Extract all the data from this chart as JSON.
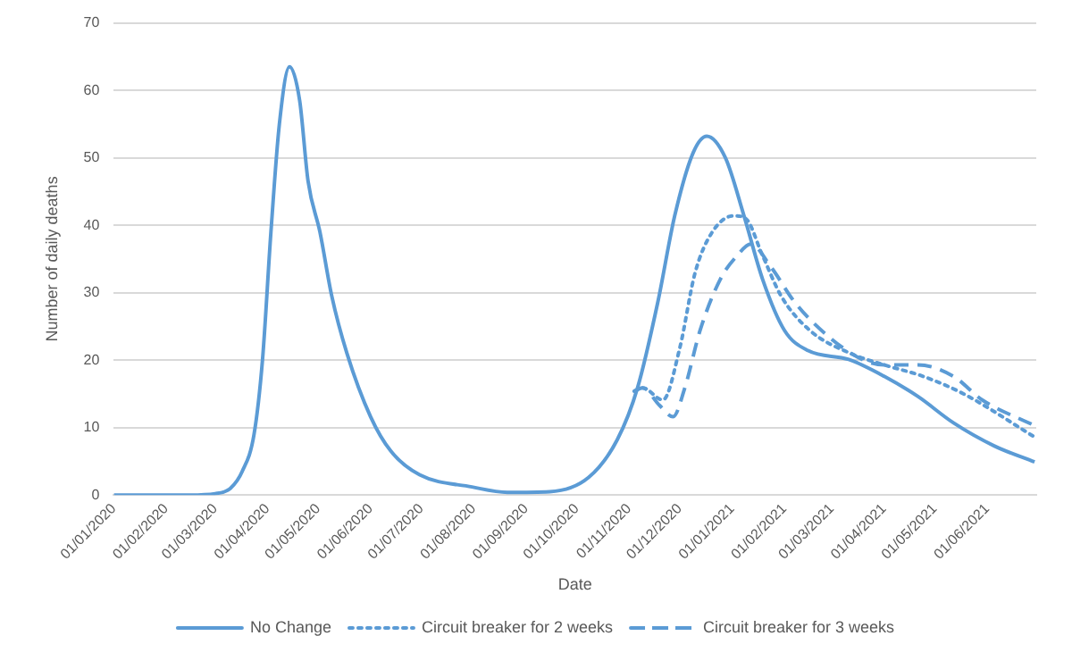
{
  "chart_data": {
    "type": "line",
    "xlabel": "Date",
    "ylabel": "Number of daily deaths",
    "xlim": [
      "2020-01-01",
      "2021-06-30"
    ],
    "xticks": [
      {
        "value": "2020-01-01",
        "label": "01/01/2020"
      },
      {
        "value": "2020-02-01",
        "label": "01/02/2020"
      },
      {
        "value": "2020-03-01",
        "label": "01/03/2020"
      },
      {
        "value": "2020-04-01",
        "label": "01/04/2020"
      },
      {
        "value": "2020-05-01",
        "label": "01/05/2020"
      },
      {
        "value": "2020-06-01",
        "label": "01/06/2020"
      },
      {
        "value": "2020-07-01",
        "label": "01/07/2020"
      },
      {
        "value": "2020-08-01",
        "label": "01/08/2020"
      },
      {
        "value": "2020-09-01",
        "label": "01/09/2020"
      },
      {
        "value": "2020-10-01",
        "label": "01/10/2020"
      },
      {
        "value": "2020-11-01",
        "label": "01/11/2020"
      },
      {
        "value": "2020-12-01",
        "label": "01/12/2020"
      },
      {
        "value": "2021-01-01",
        "label": "01/01/2021"
      },
      {
        "value": "2021-02-01",
        "label": "01/02/2021"
      },
      {
        "value": "2021-03-01",
        "label": "01/03/2021"
      },
      {
        "value": "2021-04-01",
        "label": "01/04/2021"
      },
      {
        "value": "2021-05-01",
        "label": "01/05/2021"
      },
      {
        "value": "2021-06-01",
        "label": "01/06/2021"
      }
    ],
    "ylim": [
      0,
      70
    ],
    "yticks": [
      0,
      10,
      20,
      30,
      40,
      50,
      60,
      70
    ],
    "grid": "y",
    "legend": "bottom",
    "marker": "none",
    "series": [
      {
        "name": "No Change",
        "color": "#5b9bd5",
        "line_style": "solid",
        "x": [
          "2020-01-01",
          "2020-02-15",
          "2020-03-01",
          "2020-03-10",
          "2020-03-17",
          "2020-03-24",
          "2020-03-29",
          "2020-04-03",
          "2020-04-08",
          "2020-04-14",
          "2020-04-20",
          "2020-04-25",
          "2020-05-02",
          "2020-05-09",
          "2020-05-18",
          "2020-06-01",
          "2020-06-13",
          "2020-06-30",
          "2020-07-31",
          "2020-08-21",
          "2020-09-15",
          "2020-10-08",
          "2020-10-25",
          "2020-11-06",
          "2020-11-18",
          "2020-11-28",
          "2020-12-09",
          "2020-12-17",
          "2020-12-28",
          "2021-01-08",
          "2021-01-19",
          "2021-02-01",
          "2021-02-15",
          "2021-03-11",
          "2021-04-01",
          "2021-04-21",
          "2021-05-12",
          "2021-06-05",
          "2021-06-29"
        ],
        "values": [
          0,
          0,
          0.2,
          1,
          3.5,
          9,
          20,
          39,
          55,
          63.5,
          58.5,
          46.5,
          39,
          29.5,
          21,
          11.6,
          6.5,
          3,
          1.2,
          0.4,
          0.5,
          2.6,
          8.2,
          15.9,
          28.6,
          41.4,
          50.8,
          53.2,
          50,
          41.4,
          32,
          24.4,
          21.4,
          20.1,
          17.6,
          14.6,
          10.7,
          7.3,
          4.9
        ]
      },
      {
        "name": "Circuit breaker for 2 weeks",
        "color": "#5b9bd5",
        "line_style": "dotted",
        "x": [
          "2020-11-04",
          "2020-11-09",
          "2020-11-21",
          "2020-12-01",
          "2020-12-10",
          "2020-12-20",
          "2021-01-02",
          "2021-01-09",
          "2021-01-19",
          "2021-01-30",
          "2021-02-16",
          "2021-03-12",
          "2021-04-01",
          "2021-04-24",
          "2021-05-18",
          "2021-06-29"
        ],
        "values": [
          15.4,
          15.9,
          14.1,
          21.8,
          32.9,
          38.9,
          41.4,
          41,
          35.5,
          29.5,
          24.4,
          21,
          19.3,
          17.6,
          15,
          8.6
        ]
      },
      {
        "name": "Circuit breaker for 3 weeks",
        "color": "#5b9bd5",
        "line_style": "dashed",
        "x": [
          "2020-11-04",
          "2020-11-09",
          "2020-11-19",
          "2020-11-27",
          "2020-12-04",
          "2020-12-13",
          "2020-12-25",
          "2021-01-04",
          "2021-01-12",
          "2021-01-24",
          "2021-02-07",
          "2021-02-27",
          "2021-03-19",
          "2021-04-01",
          "2021-04-21",
          "2021-05-12",
          "2021-05-29",
          "2021-06-29"
        ],
        "values": [
          15.4,
          15.9,
          13.3,
          11.6,
          15.9,
          24.4,
          32,
          35.5,
          37.2,
          33.8,
          28.6,
          23.5,
          20.1,
          19.3,
          19.3,
          17.6,
          14.1,
          10.3
        ]
      }
    ]
  }
}
